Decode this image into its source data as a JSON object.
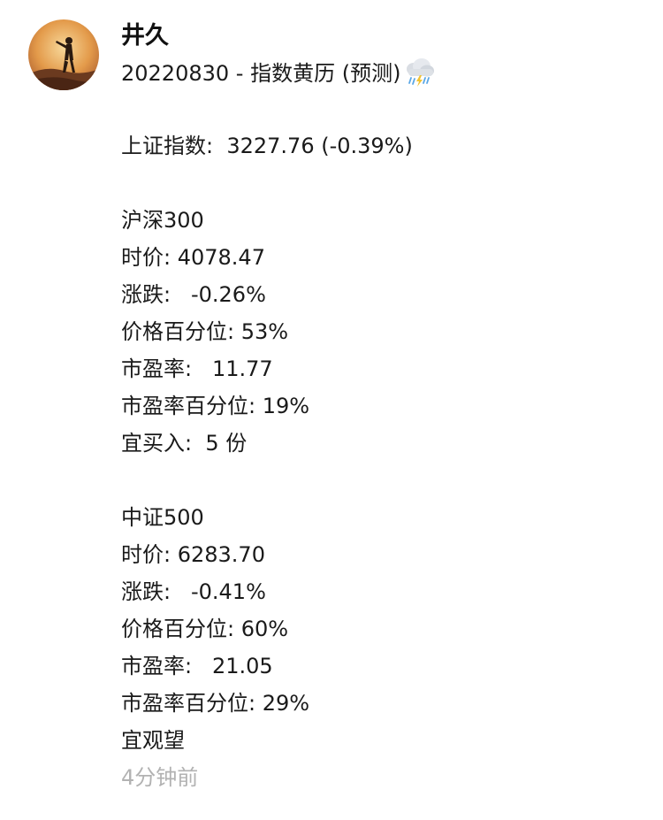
{
  "author": {
    "name": "井久"
  },
  "post": {
    "title": "20220830 - 指数黄历 (预测)",
    "title_icon": "rain-cloud-icon",
    "index_line": "上证指数:  3227.76 (-0.39%)",
    "hs300": {
      "name": "沪深300",
      "price": "时价: 4078.47",
      "change": "涨跌:   -0.26%",
      "price_percentile": "价格百分位: 53%",
      "pe": "市盈率:   11.77",
      "pe_percentile": "市盈率百分位: 19%",
      "advice": "宜买入:  5 份"
    },
    "zz500": {
      "name": "中证500",
      "price": "时价: 6283.70",
      "change": "涨跌:   -0.41%",
      "price_percentile": "价格百分位: 60%",
      "pe": "市盈率:   21.05",
      "pe_percentile": "市盈率百分位: 29%",
      "advice": "宜观望"
    },
    "timestamp": "4分钟前"
  },
  "colors": {
    "text": "#1a1a1a",
    "timestamp": "#b2b2b2",
    "background": "#ffffff"
  }
}
